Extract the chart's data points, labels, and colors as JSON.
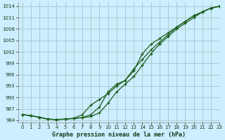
{
  "title": "Graphe pression niveau de la mer (hPa)",
  "background_color": "#cceeff",
  "grid_color": "#aacccc",
  "line_color": "#1a5c1a",
  "xlim": [
    -0.5,
    23
  ],
  "ylim": [
    983.5,
    1015
  ],
  "yticks": [
    984,
    987,
    990,
    993,
    996,
    999,
    1002,
    1005,
    1008,
    1011,
    1014
  ],
  "xticks": [
    0,
    1,
    2,
    3,
    4,
    5,
    6,
    7,
    8,
    9,
    10,
    11,
    12,
    13,
    14,
    15,
    16,
    17,
    18,
    19,
    20,
    21,
    22,
    23
  ],
  "line1_x": [
    0,
    1,
    2,
    3,
    4,
    5,
    6,
    7,
    8,
    9,
    10,
    11,
    12,
    13,
    14,
    15,
    16,
    17,
    18,
    19,
    20,
    21,
    22,
    23
  ],
  "line1_y": [
    985.5,
    985.2,
    984.8,
    984.3,
    984.2,
    984.3,
    984.5,
    984.7,
    985.0,
    986.0,
    988.5,
    991.5,
    993.5,
    995.5,
    998.5,
    1001.5,
    1004.0,
    1006.0,
    1008.0,
    1009.5,
    1011.0,
    1012.5,
    1013.5,
    1014.0
  ],
  "line2_x": [
    0,
    1,
    2,
    3,
    4,
    5,
    6,
    7,
    8,
    9,
    10,
    11,
    12,
    13,
    14,
    15,
    16,
    17,
    18,
    19,
    20,
    21,
    22,
    23
  ],
  "line2_y": [
    985.5,
    985.2,
    984.8,
    984.3,
    984.2,
    984.3,
    984.5,
    985.5,
    988.0,
    989.5,
    991.0,
    993.0,
    994.5,
    997.0,
    1001.5,
    1004.0,
    1005.5,
    1007.0,
    1008.5,
    1010.0,
    1011.5,
    1012.5,
    1013.5,
    1014.0
  ],
  "line3_x": [
    0,
    1,
    2,
    3,
    4,
    5,
    6,
    7,
    8,
    9,
    10,
    11,
    12,
    13,
    14,
    15,
    16,
    17,
    18,
    19,
    20,
    21,
    22,
    23
  ],
  "line3_y": [
    985.5,
    985.2,
    984.8,
    984.3,
    984.2,
    984.3,
    984.5,
    984.7,
    985.5,
    987.5,
    991.5,
    993.5,
    994.5,
    997.5,
    1000.0,
    1002.5,
    1004.5,
    1006.5,
    1008.5,
    1010.0,
    1011.5,
    1012.5,
    1013.5,
    1014.0
  ]
}
